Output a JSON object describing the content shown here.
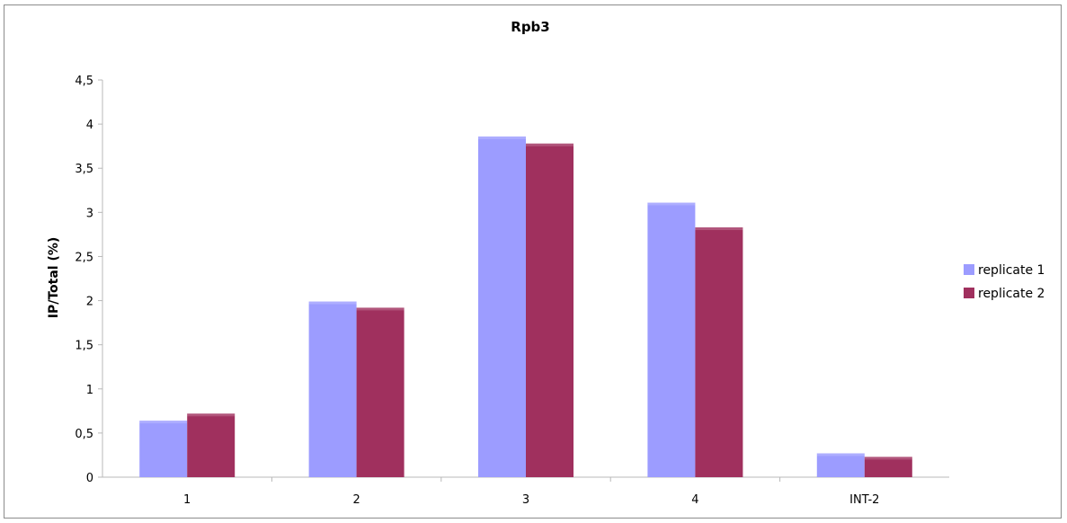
{
  "chart_data": {
    "type": "bar",
    "title": "Rpb3",
    "xlabel": "",
    "ylabel": "IP/Total (%)",
    "categories": [
      "1",
      "2",
      "3",
      "4",
      "INT-2"
    ],
    "series": [
      {
        "name": "replicate 1",
        "color": "#9c9cff",
        "values": [
          0.64,
          1.99,
          3.86,
          3.11,
          0.27
        ]
      },
      {
        "name": "replicate 2",
        "color": "#a0305e",
        "values": [
          0.72,
          1.92,
          3.78,
          2.83,
          0.23
        ]
      }
    ],
    "ylim": [
      0,
      4.5
    ],
    "yticks": [
      "0",
      "0,5",
      "1",
      "1,5",
      "2",
      "2,5",
      "3",
      "3,5",
      "4",
      "4,5"
    ],
    "grid": false,
    "legend_position": "right"
  }
}
